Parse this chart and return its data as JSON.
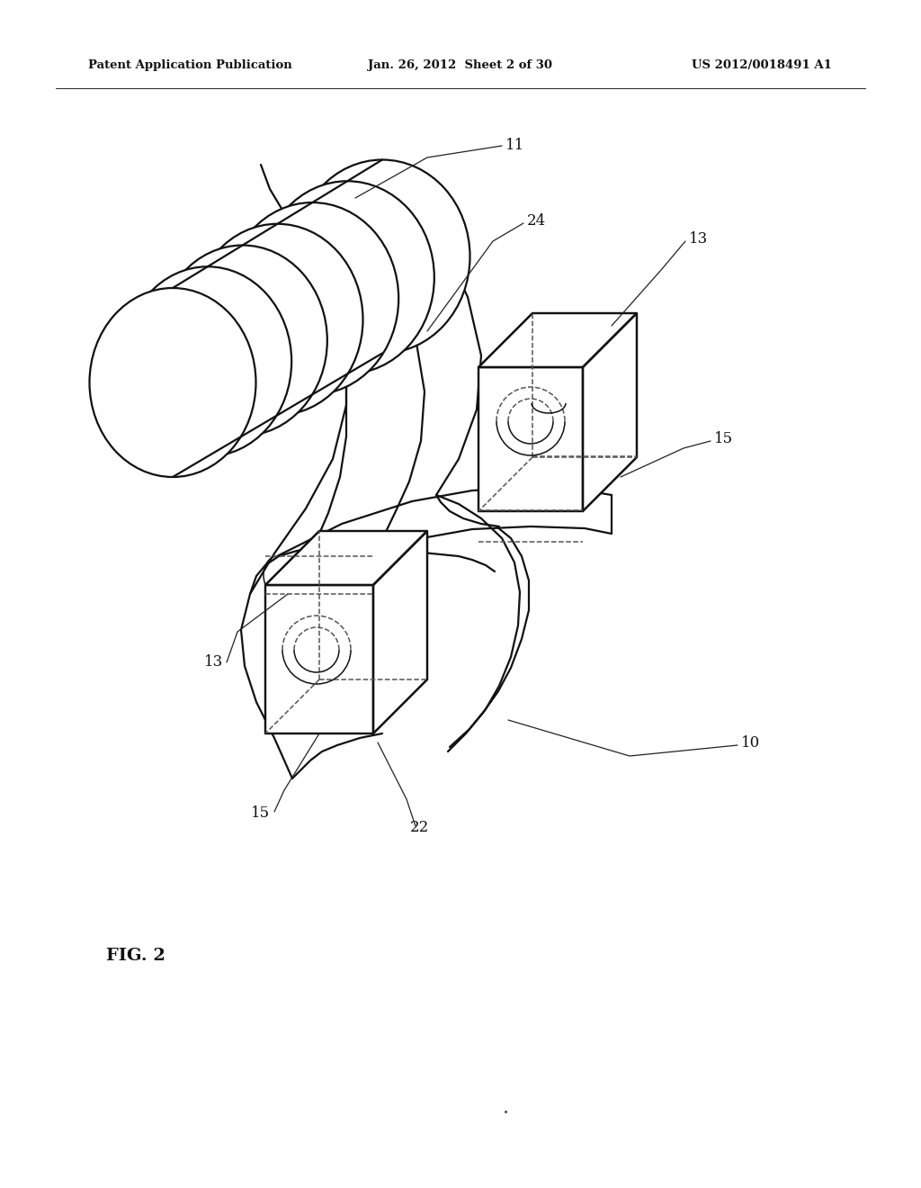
{
  "bg_color": "#ffffff",
  "line_color": "#111111",
  "dashed_color": "#555555",
  "header_left": "Patent Application Publication",
  "header_center": "Jan. 26, 2012  Sheet 2 of 30",
  "header_right": "US 2012/0018491 A1",
  "fig_label": "FIG. 2",
  "lw_main": 1.6,
  "lw_thin": 1.1,
  "lw_leader": 0.9,
  "label_fontsize": 12,
  "header_fontsize": 9.5,
  "fig_fontsize": 14
}
